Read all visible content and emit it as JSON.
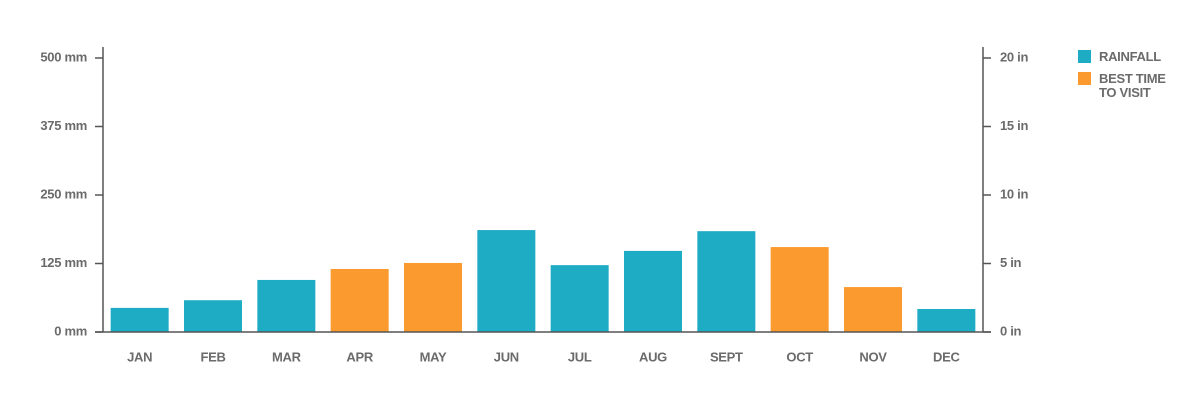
{
  "chart_data": {
    "type": "bar",
    "categories": [
      "JAN",
      "FEB",
      "MAR",
      "APR",
      "MAY",
      "JUN",
      "JUL",
      "AUG",
      "SEPT",
      "OCT",
      "NOV",
      "DEC"
    ],
    "series": [
      {
        "name": "RAINFALL",
        "color": "#1eabc4",
        "values": [
          44,
          58,
          95,
          null,
          null,
          186,
          122,
          148,
          184,
          null,
          null,
          42
        ]
      },
      {
        "name": "BEST TIME TO VISIT",
        "color": "#fb9a2e",
        "values": [
          null,
          null,
          null,
          115,
          126,
          null,
          null,
          null,
          null,
          155,
          82,
          null
        ]
      }
    ],
    "ylim": [
      0,
      500
    ],
    "yticks": [
      {
        "value": 0,
        "label": "0 mm"
      },
      {
        "value": 125,
        "label": "125 mm"
      },
      {
        "value": 250,
        "label": "250 mm"
      },
      {
        "value": 375,
        "label": "375 mm"
      },
      {
        "value": 500,
        "label": "500 mm"
      }
    ],
    "y2lim": [
      0,
      20
    ],
    "y2ticks": [
      {
        "value": 0,
        "label": "0 in"
      },
      {
        "value": 5,
        "label": "5 in"
      },
      {
        "value": 10,
        "label": "10 in"
      },
      {
        "value": 15,
        "label": "15 in"
      },
      {
        "value": 20,
        "label": "20 in"
      }
    ],
    "legend": "right"
  }
}
